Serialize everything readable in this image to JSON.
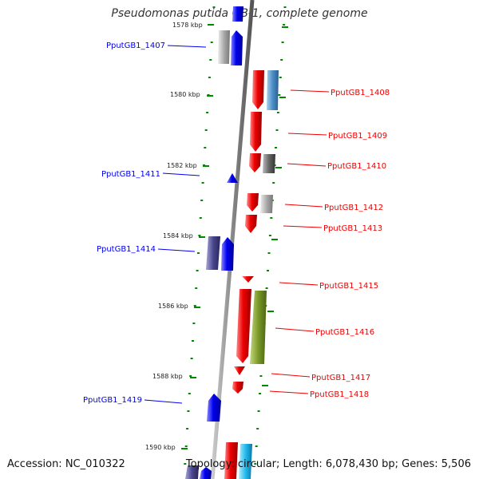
{
  "title": "Pseudomonas putida GB-1, complete genome",
  "accession": "Accession: NC_010322",
  "topology": "Topology: circular; Length: 6,078,430 bp; Genes: 5,506",
  "colors": {
    "forward": "#0000ee",
    "reverse": "#ee0000",
    "ruler": "#008800",
    "backbone": "#999999"
  },
  "kbp_labels": [
    "1578 kbp",
    "1580 kbp",
    "1582 kbp",
    "1584 kbp",
    "1586 kbp",
    "1588 kbp",
    "1590 kbp"
  ],
  "genes_left": [
    {
      "label": "PputGB1_1407"
    },
    {
      "label": "PputGB1_1411"
    },
    {
      "label": "PputGB1_1414"
    },
    {
      "label": "PputGB1_1419"
    }
  ],
  "genes_right": [
    {
      "label": "PputGB1_1408"
    },
    {
      "label": "PputGB1_1409"
    },
    {
      "label": "PputGB1_1410"
    },
    {
      "label": "PputGB1_1412"
    },
    {
      "label": "PputGB1_1413"
    },
    {
      "label": "PputGB1_1415"
    },
    {
      "label": "PputGB1_1416"
    },
    {
      "label": "PputGB1_1417"
    },
    {
      "label": "PputGB1_1418"
    }
  ]
}
